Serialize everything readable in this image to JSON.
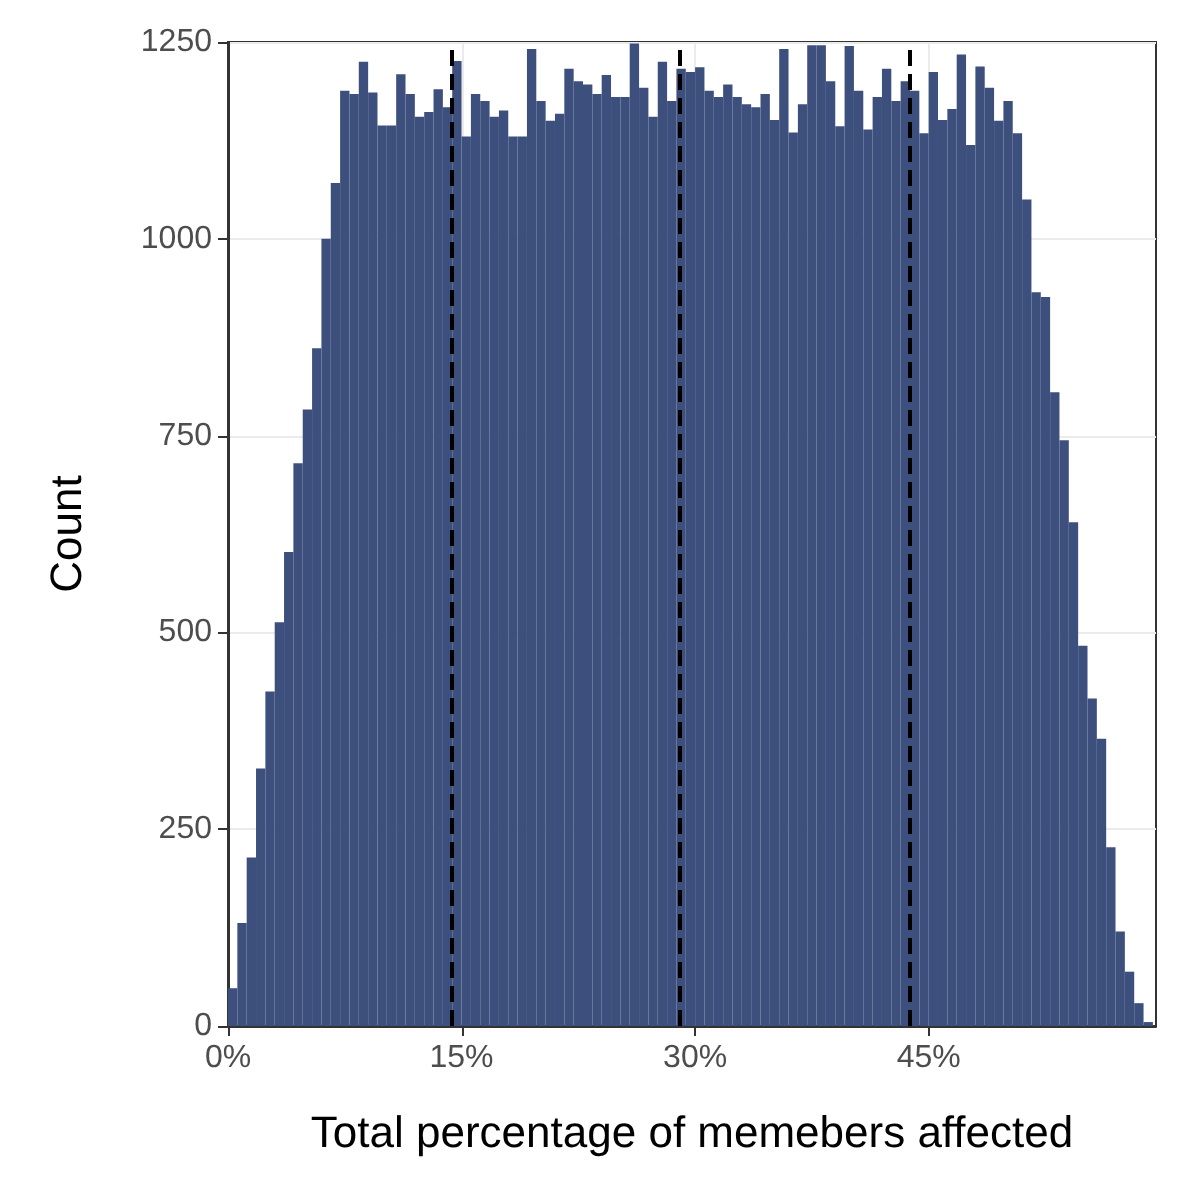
{
  "chart_data": {
    "type": "histogram",
    "xlabel": "Total percentage of memebers affected",
    "ylabel": "Count",
    "color": "#3d4f7c",
    "bins": [
      0,
      0.6,
      1.2,
      1.8,
      2.4,
      3,
      3.6,
      4.2,
      4.8,
      5.4,
      6,
      6.6,
      7.2,
      7.8,
      8.4,
      9,
      9.6,
      10.2,
      10.8,
      11.4,
      12,
      12.6,
      13.2,
      13.8,
      14.4,
      15,
      15.6,
      16.2,
      16.8,
      17.4,
      18,
      18.6,
      19.2,
      19.8,
      20.4,
      21,
      21.6,
      22.2,
      22.8,
      23.4,
      24,
      24.6,
      25.2,
      25.8,
      26.4,
      27,
      27.6,
      28.2,
      28.8,
      29.4,
      30,
      30.6,
      31.2,
      31.8,
      32.4,
      33,
      33.6,
      34.2,
      34.8,
      35.4,
      36,
      36.6,
      37.2,
      37.8,
      38.4,
      39,
      39.6,
      40.2,
      40.8,
      41.4,
      42,
      42.6,
      43.2,
      43.8,
      44.4,
      45,
      45.6,
      46.2,
      46.8,
      47.4,
      48,
      48.6,
      49.2,
      49.8,
      50.4,
      51,
      51.6,
      52.2,
      52.8,
      53.4,
      54,
      54.6,
      55.2,
      55.8,
      56.4,
      57,
      57.6,
      58.2,
      58.8,
      59.4
    ],
    "values": [
      48,
      131,
      214,
      327,
      425,
      513,
      602,
      715,
      783,
      861,
      1000,
      1071,
      1188,
      1184,
      1225,
      1186,
      1144,
      1144,
      1209,
      1184,
      1155,
      1161,
      1190,
      1167,
      1226,
      1130,
      1184,
      1175,
      1155,
      1163,
      1130,
      1130,
      1241,
      1175,
      1150,
      1159,
      1216,
      1200,
      1196,
      1184,
      1208,
      1180,
      1180,
      1248,
      1192,
      1155,
      1225,
      1175,
      1216,
      1212,
      1218,
      1188,
      1180,
      1196,
      1180,
      1171,
      1167,
      1184,
      1151,
      1241,
      1135,
      1171,
      1246,
      1246,
      1200,
      1143,
      1245,
      1188,
      1139,
      1180,
      1216,
      1175,
      1200,
      1188,
      1134,
      1212,
      1151,
      1165,
      1234,
      1119,
      1219,
      1192,
      1150,
      1175,
      1134,
      1050,
      932,
      926,
      805,
      744,
      640,
      483,
      416,
      365,
      227,
      120,
      69,
      29,
      5
    ],
    "xlim": [
      0,
      59.6
    ],
    "ylim": [
      0,
      1250
    ],
    "xticks": [
      {
        "value": 0,
        "label": "0%"
      },
      {
        "value": 15,
        "label": "15%"
      },
      {
        "value": 30,
        "label": "30%"
      },
      {
        "value": 45,
        "label": "45%"
      }
    ],
    "yticks": [
      0,
      250,
      500,
      750,
      1000,
      1250
    ],
    "grid": true,
    "ref_lines": [
      {
        "axis": "x",
        "value": 14.3,
        "color": "#000000",
        "line_style": "dashed"
      },
      {
        "axis": "x",
        "value": 29.0,
        "color": "#000000",
        "line_style": "dashed"
      },
      {
        "axis": "x",
        "value": 43.8,
        "color": "#000000",
        "line_style": "dashed"
      }
    ]
  }
}
